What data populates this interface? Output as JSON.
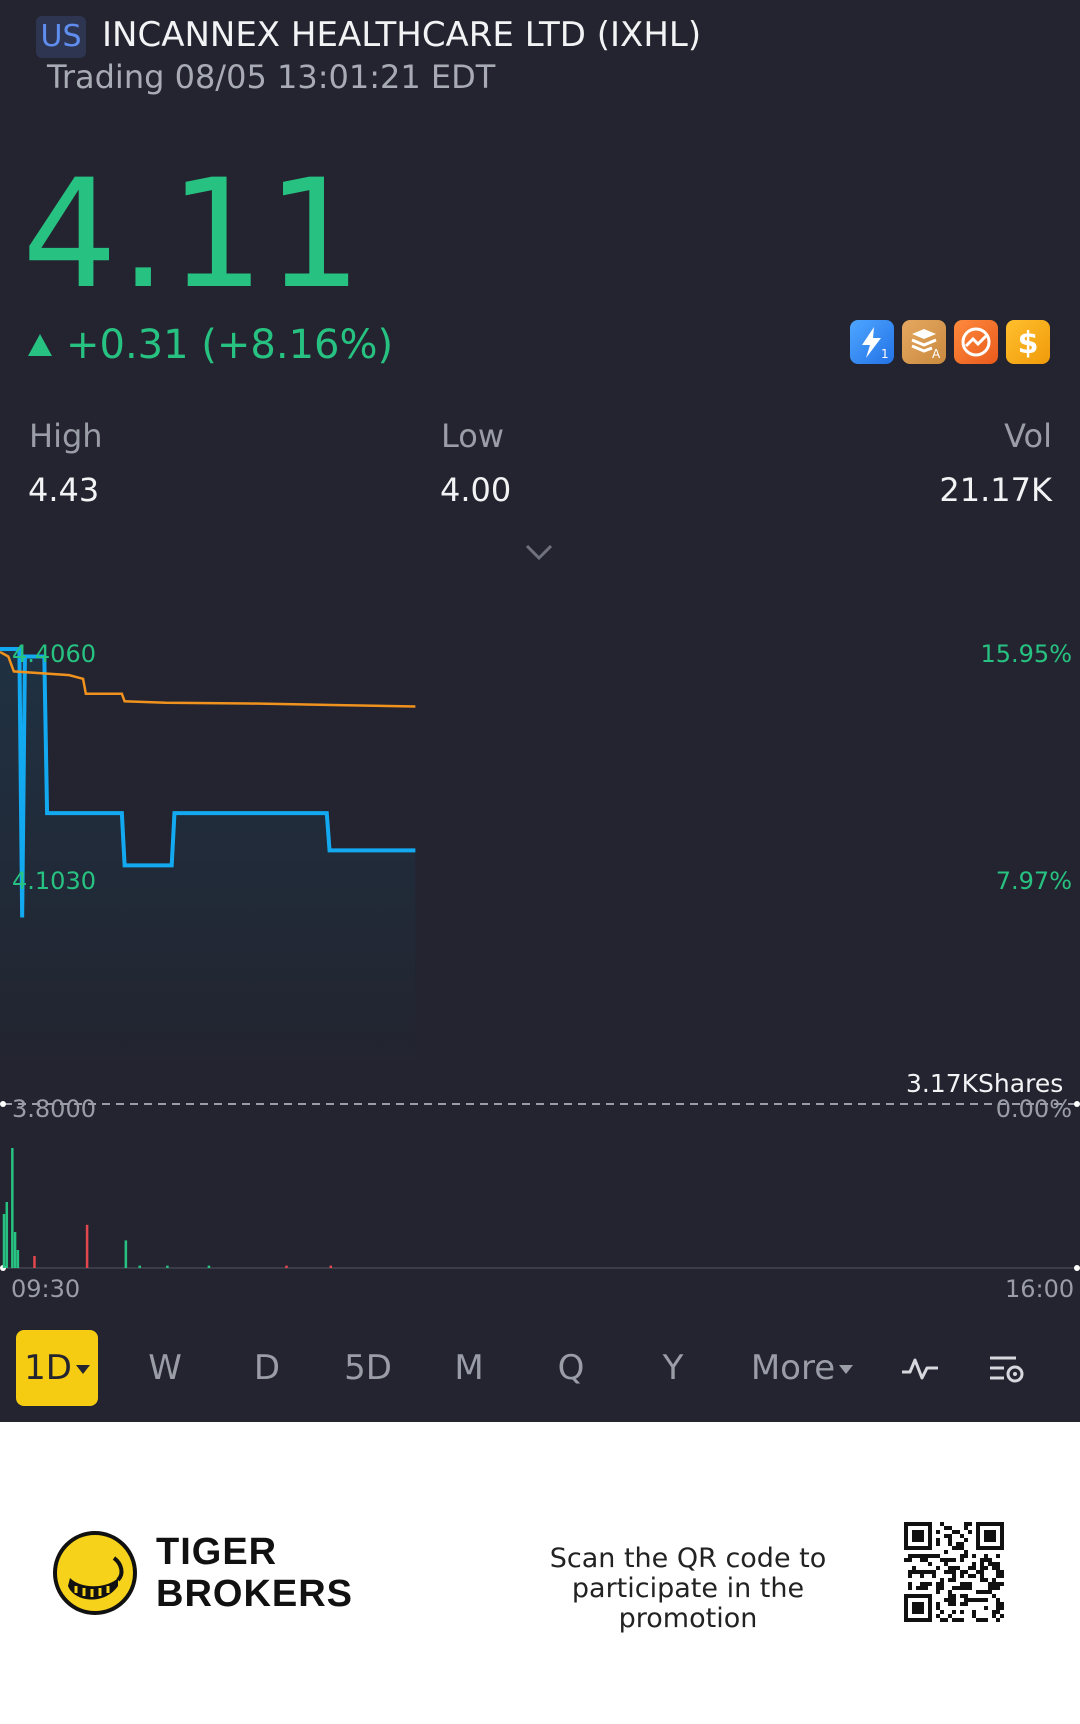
{
  "header": {
    "market": "US",
    "title": "INCANNEX HEALTHCARE LTD (IXHL)",
    "status": "Trading 08/05 13:01:21 EDT"
  },
  "quote": {
    "price": "4.11",
    "change": "+0.31 (+8.16%)",
    "badges": [
      "flash-level1-icon",
      "stack-a-icon",
      "chart-orange-icon",
      "dollar-icon"
    ]
  },
  "stats": [
    {
      "label": "High",
      "value": "4.43"
    },
    {
      "label": "Low",
      "value": "4.00"
    },
    {
      "label": "Vol",
      "value": "21.17K"
    }
  ],
  "chart": {
    "y_left_top": "4.4060",
    "y_left_mid": "4.1030",
    "y_left_bottom": "3.8000",
    "y_right_top": "15.95%",
    "y_right_mid": "7.97%",
    "y_right_bottom": "0.00%",
    "volume_label": "3.17KShares",
    "time_start": "09:30",
    "time_end": "16:00"
  },
  "chart_data": {
    "type": "line",
    "ylim": [
      3.8,
      4.406
    ],
    "xlim": [
      0,
      390
    ],
    "series": [
      {
        "color": "#13a9f0",
        "points": [
          [
            0,
            4.41
          ],
          [
            7,
            4.41
          ],
          [
            8,
            4.05
          ],
          [
            9,
            4.4
          ],
          [
            16,
            4.4
          ],
          [
            17,
            4.19
          ],
          [
            44,
            4.19
          ],
          [
            45,
            4.12
          ],
          [
            62,
            4.12
          ],
          [
            63,
            4.19
          ],
          [
            118,
            4.19
          ],
          [
            119,
            4.14
          ],
          [
            150,
            4.14
          ]
        ]
      },
      {
        "color": "#f0921e",
        "points": [
          [
            0,
            4.406
          ],
          [
            3,
            4.4
          ],
          [
            5,
            4.38
          ],
          [
            25,
            4.375
          ],
          [
            30,
            4.37
          ],
          [
            31,
            4.35
          ],
          [
            44,
            4.35
          ],
          [
            45,
            4.34
          ],
          [
            60,
            4.338
          ],
          [
            90,
            4.337
          ],
          [
            120,
            4.335
          ],
          [
            150,
            4.333
          ]
        ]
      }
    ],
    "volume": [
      {
        "x": 1,
        "v": 0.45,
        "color": "#27c281"
      },
      {
        "x": 2,
        "v": 0.55,
        "color": "#27c281"
      },
      {
        "x": 4,
        "v": 1.0,
        "color": "#27c281"
      },
      {
        "x": 5,
        "v": 0.3,
        "color": "#27c281"
      },
      {
        "x": 6,
        "v": 0.15,
        "color": "#27c281"
      },
      {
        "x": 12,
        "v": 0.1,
        "color": "#e2474d"
      },
      {
        "x": 31,
        "v": 0.36,
        "color": "#e2474d"
      },
      {
        "x": 45,
        "v": 0.23,
        "color": "#27c281"
      },
      {
        "x": 50,
        "v": 0.02,
        "color": "#27c281"
      },
      {
        "x": 60,
        "v": 0.02,
        "color": "#27c281"
      },
      {
        "x": 75,
        "v": 0.02,
        "color": "#27c281"
      },
      {
        "x": 103,
        "v": 0.02,
        "color": "#e2474d"
      },
      {
        "x": 119,
        "v": 0.02,
        "color": "#e2474d"
      }
    ]
  },
  "periods": [
    {
      "label": "1D",
      "active": true,
      "dropdown": true
    },
    {
      "label": "W"
    },
    {
      "label": "D"
    },
    {
      "label": "5D"
    },
    {
      "label": "M"
    },
    {
      "label": "Q"
    },
    {
      "label": "Y"
    },
    {
      "label": "More",
      "dropdown": true
    }
  ],
  "toolbar_icons": [
    "indicator-icon",
    "chart-settings-icon"
  ],
  "footer": {
    "brand_line1": "TIGER",
    "brand_line2": "BROKERS",
    "promo_line1": "Scan the QR code to",
    "promo_line2": "participate in the promotion"
  },
  "colors": {
    "up": "#27c281",
    "down": "#e2474d",
    "price_line": "#13a9f0",
    "avg_line": "#f0921e",
    "accent": "#f5cc12",
    "background": "#23242f"
  }
}
